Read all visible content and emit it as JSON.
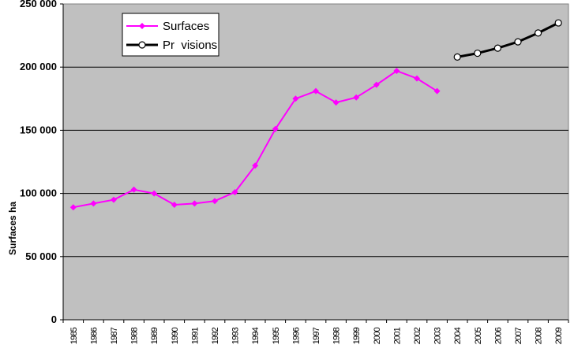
{
  "chart_data": {
    "type": "line",
    "title": "",
    "ylabel": "Surfaces ha",
    "xlabel": "",
    "ylim": [
      0,
      250000
    ],
    "yticks": [
      0,
      50000,
      100000,
      150000,
      200000,
      250000
    ],
    "ytick_labels": [
      "0",
      "50 000",
      "100 000",
      "150 000",
      "200 000",
      "250 000"
    ],
    "categories": [
      "1985",
      "1986",
      "1987",
      "1988",
      "1989",
      "1990",
      "1991",
      "1992",
      "1993",
      "1994",
      "1995",
      "1996",
      "1997",
      "1998",
      "1999",
      "2000",
      "2001",
      "2002",
      "2003",
      "2004",
      "2005",
      "2006",
      "2007",
      "2008",
      "2009"
    ],
    "grid": true,
    "legend_position": "top-left",
    "plot_background": "#c0c0c0",
    "series": [
      {
        "name": "Surfaces",
        "color": "#ff00ff",
        "marker": "diamond",
        "values": [
          89000,
          92000,
          95000,
          103000,
          100000,
          91000,
          92000,
          94000,
          101000,
          122000,
          151000,
          175000,
          181000,
          172000,
          176000,
          186000,
          197000,
          191000,
          181000,
          null,
          null,
          null,
          null,
          null,
          null
        ]
      },
      {
        "name": "Pr  visions",
        "color": "#000000",
        "marker": "circle",
        "values": [
          null,
          null,
          null,
          null,
          null,
          null,
          null,
          null,
          null,
          null,
          null,
          null,
          null,
          null,
          null,
          null,
          null,
          null,
          null,
          208000,
          211000,
          215000,
          220000,
          227000,
          235000
        ]
      }
    ]
  }
}
